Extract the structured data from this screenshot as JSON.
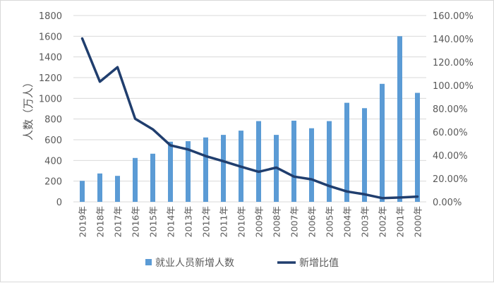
{
  "chart_data": {
    "type": "bar+line",
    "categories": [
      "2019年",
      "2018年",
      "2017年",
      "2016年",
      "2015年",
      "2014年",
      "2013年",
      "2012年",
      "2011年",
      "2010年",
      "2009年",
      "2008年",
      "2007年",
      "2006年",
      "2005年",
      "2004年",
      "2003年",
      "2002年",
      "2001年",
      "2000年"
    ],
    "series": [
      {
        "name": "就业人员新增人数",
        "type": "bar",
        "axis": "left",
        "color": "#5b9bd5",
        "values": [
          203,
          274,
          251,
          424,
          465,
          581,
          586,
          622,
          647,
          688,
          780,
          647,
          784,
          711,
          780,
          957,
          905,
          1140,
          1600,
          1053
        ]
      },
      {
        "name": "新增比值",
        "type": "line",
        "axis": "right",
        "color": "#203e6e",
        "values": [
          140.3,
          103.2,
          115.6,
          71.4,
          62.3,
          48.5,
          45.0,
          39.3,
          34.9,
          30.2,
          25.8,
          29.4,
          21.7,
          19.3,
          13.6,
          8.9,
          6.5,
          3.2,
          3.7,
          4.5
        ]
      }
    ],
    "ylabel": "人数（万人）",
    "ylim": [
      0,
      1800
    ],
    "yticks": [
      "0",
      "200",
      "400",
      "600",
      "800",
      "1000",
      "1200",
      "1400",
      "1600",
      "1800"
    ],
    "y2lim": [
      0,
      160
    ],
    "y2ticks": [
      "0.00%",
      "20.00%",
      "40.00%",
      "60.00%",
      "80.00%",
      "100.00%",
      "120.00%",
      "140.00%",
      "160.00%"
    ],
    "grid": true,
    "legend": "bottom"
  }
}
